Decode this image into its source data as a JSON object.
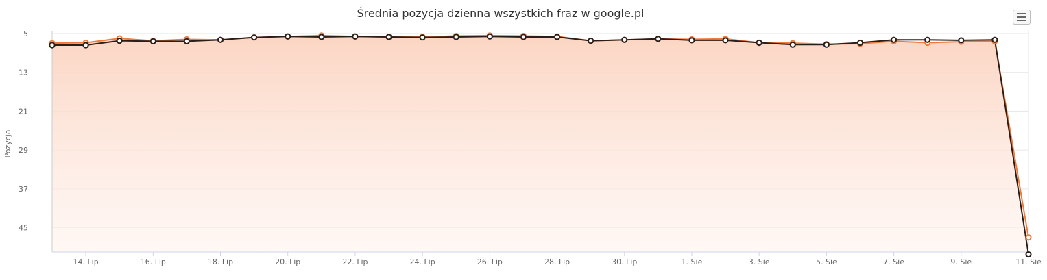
{
  "chart_data": {
    "type": "line",
    "title": "Średnia pozycja dzienna wszystkich fraz w google.pl",
    "ylabel": "Pozycja",
    "xlabel": "",
    "y_reversed": true,
    "ylim": [
      5,
      50
    ],
    "yticks": [
      "5",
      "13",
      "21",
      "29",
      "37",
      "45"
    ],
    "grid": true,
    "legend": "none",
    "x": [
      "13. Lip",
      "14. Lip",
      "15. Lip",
      "16. Lip",
      "17. Lip",
      "18. Lip",
      "19. Lip",
      "20. Lip",
      "21. Lip",
      "22. Lip",
      "23. Lip",
      "24. Lip",
      "25. Lip",
      "26. Lip",
      "27. Lip",
      "28. Lip",
      "29. Lip",
      "30. Lip",
      "31. Lip",
      "1. Sie",
      "2. Sie",
      "3. Sie",
      "4. Sie",
      "5. Sie",
      "6. Sie",
      "7. Sie",
      "8. Sie",
      "9. Sie",
      "10. Sie",
      "11. Sie"
    ],
    "xtick_labels": [
      "14. Lip",
      "16. Lip",
      "18. Lip",
      "20. Lip",
      "22. Lip",
      "24. Lip",
      "26. Lip",
      "28. Lip",
      "30. Lip",
      "1. Sie",
      "3. Sie",
      "5. Sie",
      "7. Sie",
      "9. Sie",
      "11. Sie"
    ],
    "series": [
      {
        "color": "#f07a3a",
        "values": [
          7.0,
          6.9,
          6.0,
          6.5,
          6.2,
          6.3,
          5.8,
          5.6,
          5.4,
          5.6,
          5.7,
          5.7,
          5.5,
          5.4,
          5.5,
          5.6,
          6.5,
          6.3,
          6.1,
          6.2,
          6.1,
          6.9,
          7.0,
          7.2,
          7.1,
          6.6,
          6.9,
          6.7,
          6.6,
          47.0
        ],
        "area_fill": true
      },
      {
        "color": "#2b1d17",
        "values": [
          7.4,
          7.4,
          6.5,
          6.6,
          6.6,
          6.3,
          5.8,
          5.6,
          5.7,
          5.6,
          5.7,
          5.8,
          5.7,
          5.6,
          5.7,
          5.7,
          6.5,
          6.3,
          6.1,
          6.4,
          6.4,
          6.9,
          7.3,
          7.3,
          6.9,
          6.3,
          6.3,
          6.4,
          6.3,
          50.5
        ]
      }
    ]
  },
  "ui": {
    "menu_icon": "hamburger-menu-icon"
  }
}
